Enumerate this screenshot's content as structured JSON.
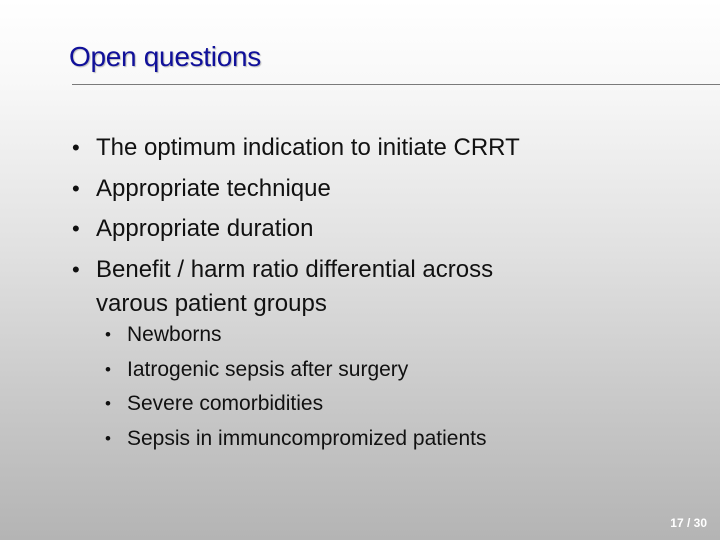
{
  "slide": {
    "title": "Open questions",
    "bullets": [
      "The optimum indication to initiate CRRT",
      "Appropriate technique",
      "Appropriate duration",
      "Benefit / harm ratio differential across varous patient groups"
    ],
    "sub_bullets": [
      "Newborns",
      "Iatrogenic sepsis after surgery",
      "Severe comorbidities",
      "Sepsis in immuncompromized patients"
    ],
    "bullet_glyph": "•",
    "page_number": "17 / 30",
    "colors": {
      "title": "#10109a",
      "page_number": "#ffffff"
    }
  }
}
